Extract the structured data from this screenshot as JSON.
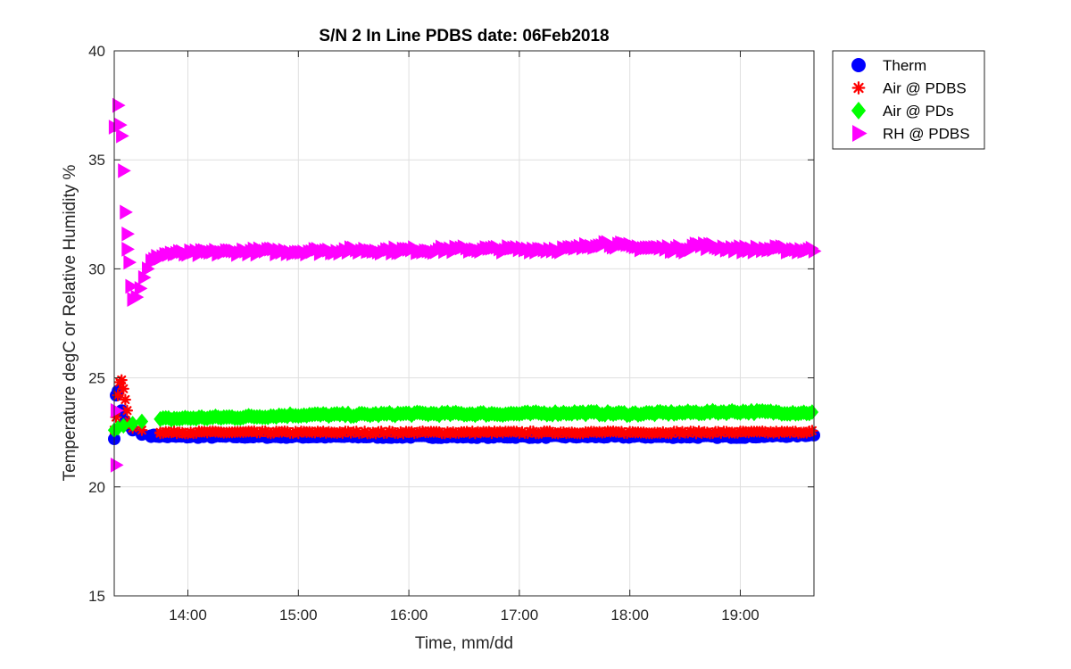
{
  "chart_data": {
    "type": "scatter",
    "title": "S/N 2 In Line PDBS date: 06Feb2018",
    "xlabel": "Time, mm/dd",
    "ylabel": "Temperature degC or Relative Humidity %",
    "xlim": [
      "13:20",
      "19:40"
    ],
    "ylim": [
      15,
      40
    ],
    "x_ticks": [
      "14:00",
      "15:00",
      "16:00",
      "17:00",
      "18:00",
      "19:00"
    ],
    "y_ticks": [
      15,
      20,
      25,
      30,
      35,
      40
    ],
    "grid": true,
    "legend_position": "outside-top-right",
    "series": [
      {
        "name": "Therm",
        "marker": "circle",
        "color": "#0000ff",
        "points": [
          [
            "13:20",
            22.2
          ],
          [
            "13:21",
            24.2
          ],
          [
            "13:22",
            24.4
          ],
          [
            "13:24",
            23.5
          ],
          [
            "13:26",
            23.0
          ],
          [
            "13:28",
            22.8
          ],
          [
            "13:30",
            22.6
          ],
          [
            "13:35",
            22.4
          ],
          [
            "13:40",
            22.35
          ],
          [
            "13:50",
            22.3
          ],
          [
            "14:00",
            22.3
          ],
          [
            "14:30",
            22.3
          ],
          [
            "15:00",
            22.3
          ],
          [
            "15:30",
            22.3
          ],
          [
            "16:00",
            22.3
          ],
          [
            "16:30",
            22.3
          ],
          [
            "17:00",
            22.3
          ],
          [
            "17:30",
            22.3
          ],
          [
            "18:00",
            22.3
          ],
          [
            "18:30",
            22.3
          ],
          [
            "19:00",
            22.3
          ],
          [
            "19:30",
            22.35
          ],
          [
            "19:40",
            22.4
          ]
        ]
      },
      {
        "name": "Air @ PDBS",
        "marker": "asterisk",
        "color": "#ff0000",
        "points": [
          [
            "13:20",
            22.6
          ],
          [
            "13:21",
            23.2
          ],
          [
            "13:22",
            24.2
          ],
          [
            "13:23",
            24.8
          ],
          [
            "13:24",
            24.9
          ],
          [
            "13:25",
            24.5
          ],
          [
            "13:26",
            24.0
          ],
          [
            "13:27",
            23.5
          ],
          [
            "13:28",
            23.0
          ],
          [
            "13:30",
            22.7
          ],
          [
            "13:35",
            22.6
          ],
          [
            "13:45",
            22.5
          ],
          [
            "14:00",
            22.5
          ],
          [
            "14:30",
            22.5
          ],
          [
            "15:00",
            22.5
          ],
          [
            "15:30",
            22.5
          ],
          [
            "16:00",
            22.5
          ],
          [
            "16:30",
            22.5
          ],
          [
            "17:00",
            22.5
          ],
          [
            "17:30",
            22.5
          ],
          [
            "18:00",
            22.5
          ],
          [
            "18:30",
            22.5
          ],
          [
            "19:00",
            22.5
          ],
          [
            "19:30",
            22.5
          ],
          [
            "19:40",
            22.55
          ]
        ]
      },
      {
        "name": "Air @ PDs",
        "marker": "diamond",
        "color": "#00ff00",
        "points": [
          [
            "13:20",
            22.6
          ],
          [
            "13:22",
            22.7
          ],
          [
            "13:25",
            22.8
          ],
          [
            "13:30",
            22.9
          ],
          [
            "13:35",
            23.0
          ],
          [
            "13:45",
            23.1
          ],
          [
            "14:00",
            23.15
          ],
          [
            "14:30",
            23.2
          ],
          [
            "15:00",
            23.3
          ],
          [
            "15:30",
            23.3
          ],
          [
            "16:00",
            23.35
          ],
          [
            "16:30",
            23.35
          ],
          [
            "17:00",
            23.35
          ],
          [
            "17:30",
            23.4
          ],
          [
            "18:00",
            23.35
          ],
          [
            "18:30",
            23.4
          ],
          [
            "19:00",
            23.45
          ],
          [
            "19:30",
            23.4
          ],
          [
            "19:40",
            23.4
          ]
        ]
      },
      {
        "name": "RH @ PDBS",
        "marker": "triangle-right",
        "color": "#ff00ff",
        "points": [
          [
            "13:20",
            36.5
          ],
          [
            "13:21",
            23.5
          ],
          [
            "13:21",
            21.0
          ],
          [
            "13:22",
            37.5
          ],
          [
            "13:23",
            36.6
          ],
          [
            "13:24",
            36.1
          ],
          [
            "13:25",
            34.5
          ],
          [
            "13:26",
            32.6
          ],
          [
            "13:27",
            31.6
          ],
          [
            "13:27",
            30.9
          ],
          [
            "13:28",
            30.3
          ],
          [
            "13:29",
            29.2
          ],
          [
            "13:30",
            28.6
          ],
          [
            "13:32",
            28.7
          ],
          [
            "13:34",
            29.1
          ],
          [
            "13:36",
            29.6
          ],
          [
            "13:38",
            30.0
          ],
          [
            "13:40",
            30.3
          ],
          [
            "13:45",
            30.6
          ],
          [
            "13:50",
            30.7
          ],
          [
            "14:00",
            30.7
          ],
          [
            "14:30",
            30.8
          ],
          [
            "15:00",
            30.8
          ],
          [
            "15:30",
            30.85
          ],
          [
            "16:00",
            30.85
          ],
          [
            "16:30",
            30.9
          ],
          [
            "17:00",
            30.9
          ],
          [
            "17:30",
            30.9
          ],
          [
            "17:45",
            31.2
          ],
          [
            "18:00",
            31.0
          ],
          [
            "18:30",
            30.9
          ],
          [
            "18:35",
            31.1
          ],
          [
            "19:00",
            30.9
          ],
          [
            "19:20",
            30.9
          ],
          [
            "19:40",
            30.85
          ]
        ]
      }
    ]
  }
}
